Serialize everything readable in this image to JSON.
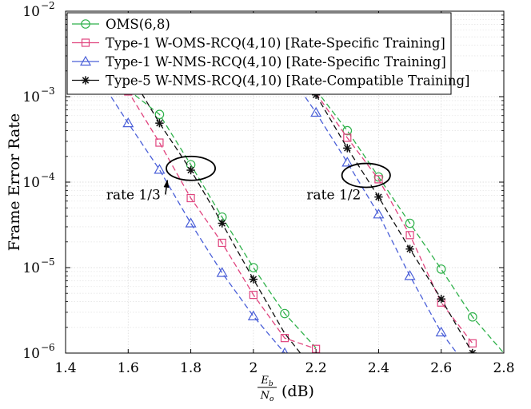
{
  "chart_data": {
    "type": "line",
    "xscale": "linear",
    "yscale": "log",
    "xlim": [
      1.4,
      2.8
    ],
    "ylim": [
      1e-06,
      0.01
    ],
    "xticks": [
      1.4,
      1.6,
      1.8,
      2.0,
      2.2,
      2.4,
      2.6,
      2.8
    ],
    "xtick_labels": [
      "1.4",
      "1.6",
      "1.8",
      "2",
      "2.2",
      "2.4",
      "2.6",
      "2.8"
    ],
    "yticks": [
      1e-06,
      1e-05,
      0.0001,
      0.001,
      0.01
    ],
    "ytick_labels": [
      {
        "base": "10",
        "exp": "−6"
      },
      {
        "base": "10",
        "exp": "−5"
      },
      {
        "base": "10",
        "exp": "−4"
      },
      {
        "base": "10",
        "exp": "−3"
      },
      {
        "base": "10",
        "exp": "−2"
      }
    ],
    "ylabel": "Frame Error Rate",
    "xlabel": {
      "num": "E",
      "num_sub": "b",
      "den": "N",
      "den_sub": "o",
      "unit": "(dB)"
    },
    "grid": true,
    "legend_position": "top-left",
    "series": [
      {
        "name": "OMS(6,8)",
        "color": "#2fb14a",
        "marker": "circle",
        "groups": [
          {
            "x": [
              1.6,
              1.7,
              1.8,
              1.9,
              2.0,
              2.1,
              2.2
            ],
            "y": [
              0.0012,
              0.00062,
              0.00016,
              3.9e-05,
              1e-05,
              2.9e-06,
              1.15e-06
            ]
          },
          {
            "x": [
              2.2,
              2.3,
              2.4,
              2.5,
              2.6,
              2.7,
              2.8
            ],
            "y": [
              0.0012,
              0.0004,
              0.000115,
              3.3e-05,
              9.6e-06,
              2.65e-06,
              1e-06
            ]
          }
        ],
        "markers_at": [
          {
            "x": 1.7,
            "y": 0.00062
          },
          {
            "x": 1.8,
            "y": 0.00016
          },
          {
            "x": 1.9,
            "y": 3.9e-05
          },
          {
            "x": 2.0,
            "y": 1e-05
          },
          {
            "x": 2.1,
            "y": 2.9e-06
          },
          {
            "x": 2.2,
            "y": 0.0012
          },
          {
            "x": 2.3,
            "y": 0.0004
          },
          {
            "x": 2.4,
            "y": 0.000115
          },
          {
            "x": 2.5,
            "y": 3.3e-05
          },
          {
            "x": 2.6,
            "y": 9.6e-06
          },
          {
            "x": 2.7,
            "y": 2.65e-06
          }
        ]
      },
      {
        "name": "Type-1 W-OMS-RCQ(4,10) [Rate-Specific Training]",
        "color": "#e0447e",
        "marker": "square",
        "groups": [
          {
            "x": [
              1.5,
              1.6,
              1.7,
              1.8,
              1.9,
              2.0,
              2.1,
              2.2
            ],
            "y": [
              0.0038,
              0.00115,
              0.00029,
              6.5e-05,
              1.95e-05,
              4.8e-06,
              1.5e-06,
              1.12e-06
            ]
          },
          {
            "x": [
              2.2,
              2.3,
              2.4,
              2.5,
              2.6,
              2.7
            ],
            "y": [
              0.0011,
              0.00033,
              0.000108,
              2.4e-05,
              3.9e-06,
              1.3e-06
            ]
          }
        ],
        "markers_at": [
          {
            "x": 1.6,
            "y": 0.00115
          },
          {
            "x": 1.7,
            "y": 0.00029
          },
          {
            "x": 1.8,
            "y": 6.5e-05
          },
          {
            "x": 1.9,
            "y": 1.95e-05
          },
          {
            "x": 2.0,
            "y": 4.8e-06
          },
          {
            "x": 2.1,
            "y": 1.5e-06
          },
          {
            "x": 2.2,
            "y": 1.12e-06
          },
          {
            "x": 2.3,
            "y": 0.00033
          },
          {
            "x": 2.4,
            "y": 0.000108
          },
          {
            "x": 2.5,
            "y": 2.4e-05
          },
          {
            "x": 2.6,
            "y": 3.9e-06
          },
          {
            "x": 2.7,
            "y": 1.3e-06
          }
        ]
      },
      {
        "name": "Type-1 W-NMS-RCQ(4,10) [Rate-Specific Training]",
        "color": "#4a5fd8",
        "marker": "triangle",
        "groups": [
          {
            "x": [
              1.5,
              1.6,
              1.7,
              1.8,
              1.9,
              2.0,
              2.1
            ],
            "y": [
              0.0018,
              0.00049,
              0.00014,
              3.3e-05,
              8.7e-06,
              2.7e-06,
              1e-06
            ]
          },
          {
            "x": [
              2.15,
              2.2,
              2.3,
              2.4,
              2.5,
              2.6,
              2.65
            ],
            "y": [
              0.0012,
              0.00065,
              0.00017,
              4.2e-05,
              8e-06,
              1.75e-06,
              1e-06
            ]
          }
        ],
        "markers_at": [
          {
            "x": 1.6,
            "y": 0.00049
          },
          {
            "x": 1.7,
            "y": 0.00014
          },
          {
            "x": 1.8,
            "y": 3.3e-05
          },
          {
            "x": 1.9,
            "y": 8.7e-06
          },
          {
            "x": 2.0,
            "y": 2.7e-06
          },
          {
            "x": 2.1,
            "y": 1e-06
          },
          {
            "x": 2.2,
            "y": 0.00065
          },
          {
            "x": 2.3,
            "y": 0.00017
          },
          {
            "x": 2.4,
            "y": 4.2e-05
          },
          {
            "x": 2.5,
            "y": 8e-06
          },
          {
            "x": 2.6,
            "y": 1.75e-06
          }
        ]
      },
      {
        "name": "Type-5 W-NMS-RCQ(4,10) [Rate-Compatible Training]",
        "color": "#111111",
        "marker": "star",
        "groups": [
          {
            "x": [
              1.6,
              1.7,
              1.8,
              1.9,
              2.0,
              2.1,
              2.15
            ],
            "y": [
              0.002,
              0.00049,
              0.000138,
              3.3e-05,
              7.3e-06,
              1.7e-06,
              1e-06
            ]
          },
          {
            "x": [
              2.2,
              2.3,
              2.4,
              2.5,
              2.6,
              2.7,
              2.72
            ],
            "y": [
              0.00105,
              0.00025,
              6.7e-05,
              1.65e-05,
              4.3e-06,
              1e-06,
              8.5e-07
            ]
          }
        ],
        "markers_at": [
          {
            "x": 1.7,
            "y": 0.00049
          },
          {
            "x": 1.8,
            "y": 0.000138
          },
          {
            "x": 1.9,
            "y": 3.3e-05
          },
          {
            "x": 2.0,
            "y": 7.3e-06
          },
          {
            "x": 2.2,
            "y": 0.00105
          },
          {
            "x": 2.3,
            "y": 0.00025
          },
          {
            "x": 2.4,
            "y": 6.7e-05
          },
          {
            "x": 2.5,
            "y": 1.65e-05
          },
          {
            "x": 2.6,
            "y": 4.3e-06
          },
          {
            "x": 2.7,
            "y": 1e-06
          }
        ]
      }
    ],
    "annotations": [
      {
        "text": "rate 1/3",
        "ellipse_center": {
          "x": 1.8,
          "y": 0.000145
        },
        "ellipse_rx_data": 0.078,
        "ellipse_ry_decades": 0.14,
        "label_at": {
          "x": 1.53,
          "y": 6.3e-05
        },
        "arrow_to": {
          "x": 1.725,
          "y": 0.000105
        }
      },
      {
        "text": "rate 1/2",
        "ellipse_center": {
          "x": 2.36,
          "y": 0.00012
        },
        "ellipse_rx_data": 0.077,
        "ellipse_ry_decades": 0.14,
        "label_at": {
          "x": 2.17,
          "y": 6.3e-05
        },
        "arrow_to": null
      }
    ]
  }
}
